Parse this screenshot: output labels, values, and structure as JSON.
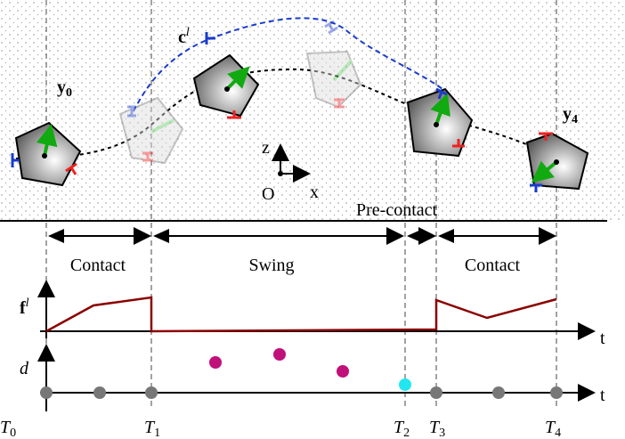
{
  "labels": {
    "y0": {
      "base": "y",
      "sub": "0"
    },
    "y4": {
      "base": "y",
      "sub": "4"
    },
    "cl": {
      "base": "c",
      "sup": "l"
    },
    "z": "z",
    "x": "x",
    "origin": "O",
    "pre_contact": "Pre-contact",
    "phases": [
      "Contact",
      "Swing",
      "Contact"
    ],
    "fl": {
      "base": "f",
      "sup": "l"
    },
    "d": "d",
    "t_force": "t",
    "t_d": "t",
    "times": [
      {
        "base": "T",
        "sub": "0"
      },
      {
        "base": "T",
        "sub": "1"
      },
      {
        "base": "T",
        "sub": "2"
      },
      {
        "base": "T",
        "sub": "3"
      },
      {
        "base": "T",
        "sub": "4"
      }
    ]
  }
}
